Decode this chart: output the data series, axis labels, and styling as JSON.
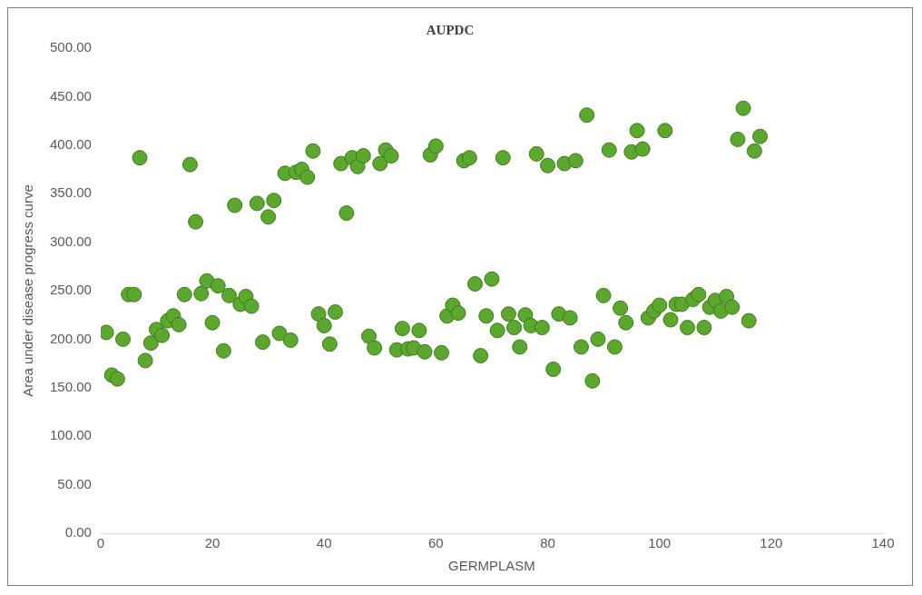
{
  "chart_data": {
    "type": "scatter",
    "title": "AUPDC",
    "xlabel": "GERMPLASM",
    "ylabel": "Area under disease progress curve",
    "color": "#5ca82e",
    "marker": "circle",
    "x": [
      1,
      2,
      3,
      4,
      5,
      6,
      7,
      8,
      9,
      10,
      11,
      12,
      13,
      14,
      15,
      16,
      17,
      18,
      19,
      20,
      21,
      22,
      23,
      24,
      25,
      26,
      27,
      28,
      29,
      30,
      31,
      32,
      33,
      34,
      35,
      36,
      37,
      38,
      39,
      40,
      41,
      42,
      43,
      44,
      45,
      46,
      47,
      48,
      49,
      50,
      51,
      52,
      53,
      54,
      55,
      56,
      57,
      58,
      59,
      60,
      61,
      62,
      63,
      64,
      65,
      66,
      67,
      68,
      69,
      70,
      71,
      72,
      73,
      74,
      75,
      76,
      77,
      78,
      79,
      80,
      81,
      82,
      83,
      84,
      85,
      86,
      87,
      88,
      89,
      90,
      91,
      92,
      93,
      94,
      95,
      96,
      97,
      98,
      99,
      100,
      101,
      102,
      103,
      104,
      105,
      106,
      107,
      108,
      109,
      110,
      111,
      112,
      113,
      114,
      115,
      116,
      117,
      118
    ],
    "values": [
      207,
      163,
      159,
      200,
      246,
      246,
      387,
      178,
      196,
      210,
      204,
      219,
      224,
      215,
      246,
      380,
      321,
      247,
      260,
      217,
      255,
      188,
      245,
      338,
      236,
      244,
      234,
      340,
      197,
      326,
      343,
      206,
      371,
      199,
      372,
      375,
      367,
      394,
      226,
      214,
      195,
      228,
      381,
      330,
      387,
      378,
      389,
      203,
      191,
      381,
      395,
      389,
      189,
      211,
      190,
      191,
      209,
      187,
      390,
      399,
      186,
      224,
      235,
      227,
      384,
      387,
      257,
      183,
      224,
      262,
      209,
      387,
      226,
      212,
      192,
      225,
      214,
      391,
      212,
      379,
      169,
      226,
      381,
      222,
      384,
      192,
      431,
      157,
      200,
      245,
      395,
      192,
      232,
      217,
      393,
      415,
      396,
      222,
      229,
      235,
      415,
      220,
      236,
      236,
      212,
      241,
      246,
      212,
      233,
      240,
      229,
      244,
      233,
      406,
      438,
      219,
      394,
      409
    ],
    "xlim": [
      0,
      140
    ],
    "xticks": [
      0,
      20,
      40,
      60,
      80,
      100,
      120,
      140
    ],
    "ylim": [
      0,
      500
    ],
    "yticks": [
      {
        "value": 0,
        "label": "0.00"
      },
      {
        "value": 50,
        "label": "50.00"
      },
      {
        "value": 100,
        "label": "100.00"
      },
      {
        "value": 150,
        "label": "150.00"
      },
      {
        "value": 200,
        "label": "200.00"
      },
      {
        "value": 250,
        "label": "250.00"
      },
      {
        "value": 300,
        "label": "300.00"
      },
      {
        "value": 350,
        "label": "350.00"
      },
      {
        "value": 400,
        "label": "400.00"
      },
      {
        "value": 450,
        "label": "450.00"
      },
      {
        "value": 500,
        "label": "500.00"
      }
    ]
  }
}
